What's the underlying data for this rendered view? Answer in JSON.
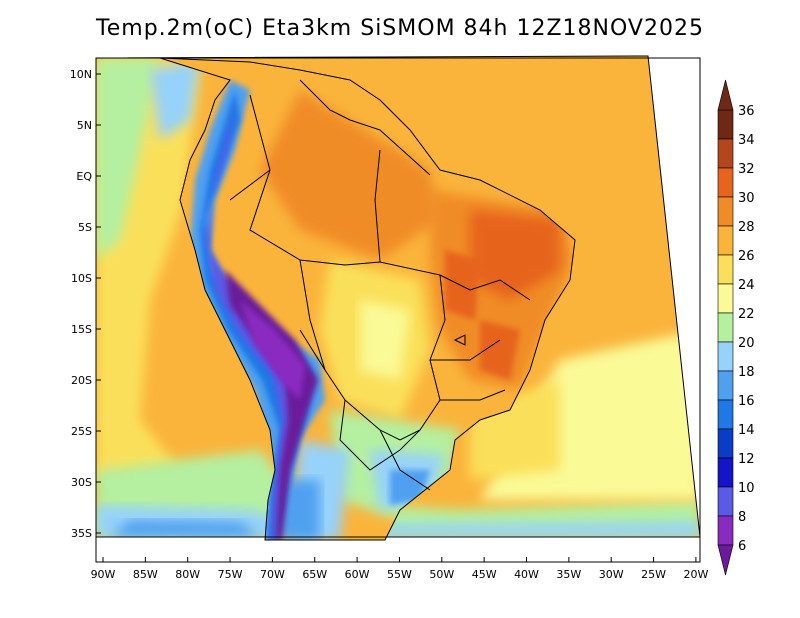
{
  "title": "Temp.2m(oC) Eta3km SiSMOM 84h 12Z18NOV2025",
  "map": {
    "lat_ticks": [
      {
        "label": "10N",
        "lat": 10
      },
      {
        "label": "5N",
        "lat": 5
      },
      {
        "label": "EQ",
        "lat": 0
      },
      {
        "label": "5S",
        "lat": -5
      },
      {
        "label": "10S",
        "lat": -10
      },
      {
        "label": "15S",
        "lat": -15
      },
      {
        "label": "20S",
        "lat": -20
      },
      {
        "label": "25S",
        "lat": -25
      },
      {
        "label": "30S",
        "lat": -30
      },
      {
        "label": "35S",
        "lat": -35
      }
    ],
    "lon_ticks": [
      {
        "label": "90W",
        "lon": -90
      },
      {
        "label": "85W",
        "lon": -85
      },
      {
        "label": "80W",
        "lon": -80
      },
      {
        "label": "75W",
        "lon": -75
      },
      {
        "label": "70W",
        "lon": -70
      },
      {
        "label": "65W",
        "lon": -65
      },
      {
        "label": "60W",
        "lon": -60
      },
      {
        "label": "55W",
        "lon": -55
      },
      {
        "label": "50W",
        "lon": -50
      },
      {
        "label": "45W",
        "lon": -45
      },
      {
        "label": "40W",
        "lon": -40
      },
      {
        "label": "35W",
        "lon": -35
      },
      {
        "label": "30W",
        "lon": -30
      },
      {
        "label": "25W",
        "lon": -25
      },
      {
        "label": "20W",
        "lon": -20
      }
    ]
  },
  "colorbar": {
    "levels": [
      {
        "label": "6",
        "color": "#6a1a9a"
      },
      {
        "label": "8",
        "color": "#8a2bc0"
      },
      {
        "label": "10",
        "color": "#5a5ae6"
      },
      {
        "label": "12",
        "color": "#1414c8"
      },
      {
        "label": "14",
        "color": "#0a3cc8"
      },
      {
        "label": "16",
        "color": "#1e78e6"
      },
      {
        "label": "18",
        "color": "#50a0f0"
      },
      {
        "label": "20",
        "color": "#96d2fa"
      },
      {
        "label": "22",
        "color": "#b4f0a0"
      },
      {
        "label": "24",
        "color": "#fafa96"
      },
      {
        "label": "26",
        "color": "#fae05a"
      },
      {
        "label": "28",
        "color": "#fab43c"
      },
      {
        "label": "30",
        "color": "#f08c28"
      },
      {
        "label": "32",
        "color": "#e6641e"
      },
      {
        "label": "34",
        "color": "#b4461e"
      },
      {
        "label": "36",
        "color": "#6e2814"
      }
    ],
    "min_color": "#6a1a9a",
    "max_color": "#6e2814"
  }
}
